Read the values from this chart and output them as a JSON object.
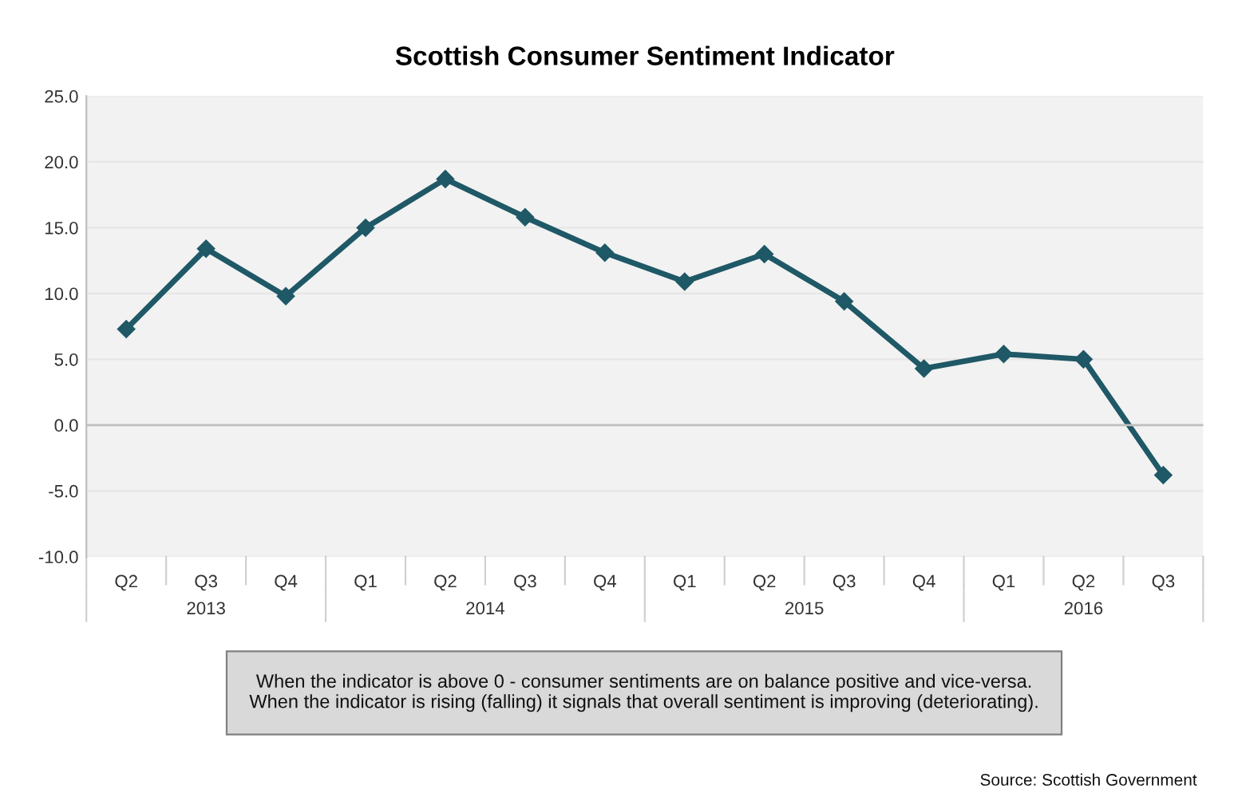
{
  "chart_data": {
    "type": "line",
    "title": "Scottish Consumer Sentiment Indicator",
    "categories": [
      "Q2",
      "Q3",
      "Q4",
      "Q1",
      "Q2",
      "Q3",
      "Q4",
      "Q1",
      "Q2",
      "Q3",
      "Q4",
      "Q1",
      "Q2",
      "Q3"
    ],
    "series": [
      {
        "color": "#1f5866",
        "values": [
          7.3,
          13.4,
          9.8,
          15.0,
          18.7,
          15.8,
          13.1,
          10.9,
          13.0,
          9.4,
          4.3,
          5.4,
          5.0,
          -3.8
        ]
      }
    ],
    "ylim": [
      -10,
      25
    ],
    "yticks": [
      {
        "value": -10,
        "label": "-10.0"
      },
      {
        "value": -5,
        "label": "-5.0"
      },
      {
        "value": 0,
        "label": "0.0"
      },
      {
        "value": 5,
        "label": "5.0"
      },
      {
        "value": 10,
        "label": "10.0"
      },
      {
        "value": 15,
        "label": "15.0"
      },
      {
        "value": 20,
        "label": "20.0"
      },
      {
        "value": 25,
        "label": "25.0"
      }
    ],
    "grid": "y",
    "marker": "diamond",
    "line_style": "solid",
    "legend": false,
    "annotations": [
      "2013",
      "2014",
      "2015",
      "2016",
      "When the indicator is above 0 - consumer sentiments are on balance positive and vice-versa.\nWhen the indicator is rising (falling) it signals that overall sentiment is improving (deteriorating).",
      "Source: Scottish Government"
    ]
  }
}
